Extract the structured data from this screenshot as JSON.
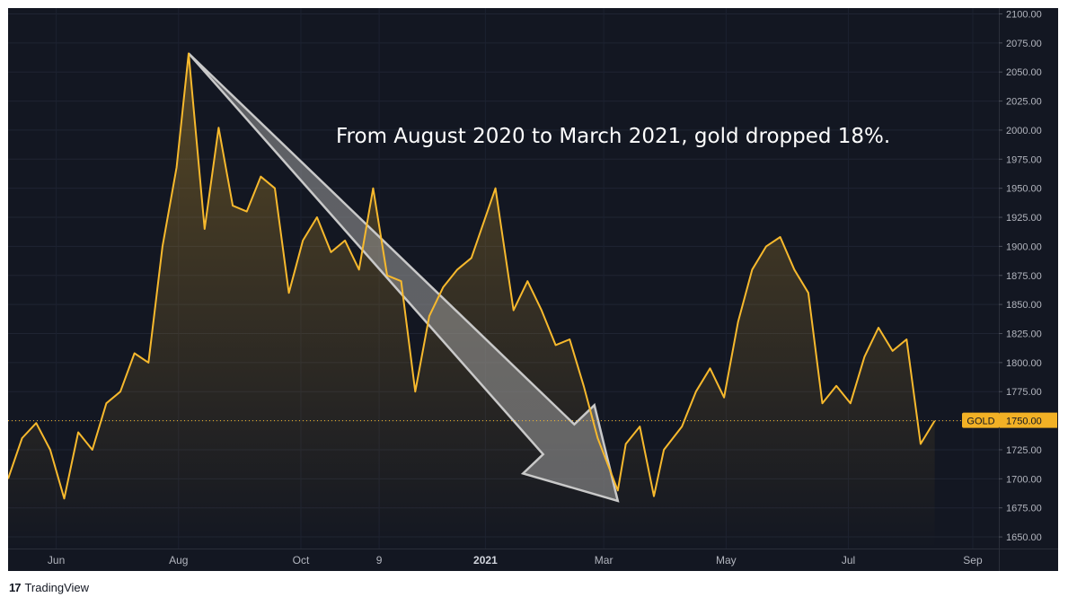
{
  "annotation": "From August 2020 to March 2021, gold dropped 18%.",
  "brand": {
    "logo": "17",
    "name": "TradingView"
  },
  "colors": {
    "background": "#131722",
    "line": "#f7b92d",
    "arrow": "#8e8e8e",
    "label_bg": "#f2b125"
  },
  "chart_data": {
    "type": "area",
    "series": [
      {
        "name": "GOLD",
        "last_value": 1750,
        "x": [
          "2020-05-08",
          "2020-05-15",
          "2020-05-22",
          "2020-05-29",
          "2020-06-05",
          "2020-06-12",
          "2020-06-19",
          "2020-06-26",
          "2020-07-03",
          "2020-07-10",
          "2020-07-17",
          "2020-07-24",
          "2020-07-31",
          "2020-08-06",
          "2020-08-14",
          "2020-08-21",
          "2020-08-28",
          "2020-09-04",
          "2020-09-11",
          "2020-09-18",
          "2020-09-25",
          "2020-10-02",
          "2020-10-09",
          "2020-10-16",
          "2020-10-23",
          "2020-10-30",
          "2020-11-06",
          "2020-11-13",
          "2020-11-20",
          "2020-11-27",
          "2020-12-04",
          "2020-12-11",
          "2020-12-18",
          "2020-12-25",
          "2021-01-06",
          "2021-01-15",
          "2021-01-22",
          "2021-01-29",
          "2021-02-05",
          "2021-02-12",
          "2021-02-19",
          "2021-02-26",
          "2021-03-08",
          "2021-03-12",
          "2021-03-19",
          "2021-03-26",
          "2021-03-31",
          "2021-04-09",
          "2021-04-16",
          "2021-04-23",
          "2021-04-30",
          "2021-05-07",
          "2021-05-14",
          "2021-05-21",
          "2021-05-28",
          "2021-06-04",
          "2021-06-11",
          "2021-06-18",
          "2021-06-25",
          "2021-07-02",
          "2021-07-09",
          "2021-07-16",
          "2021-07-23",
          "2021-07-30",
          "2021-08-06",
          "2021-08-13"
        ],
        "y": [
          1700,
          1735,
          1748,
          1725,
          1683,
          1740,
          1725,
          1765,
          1775,
          1808,
          1800,
          1900,
          1968,
          2066,
          1915,
          2002,
          1935,
          1930,
          1960,
          1950,
          1860,
          1905,
          1925,
          1895,
          1905,
          1880,
          1950,
          1875,
          1870,
          1775,
          1840,
          1865,
          1880,
          1890,
          1950,
          1845,
          1870,
          1845,
          1815,
          1820,
          1780,
          1735,
          1690,
          1730,
          1745,
          1685,
          1725,
          1745,
          1775,
          1795,
          1770,
          1835,
          1880,
          1900,
          1908,
          1880,
          1860,
          1765,
          1780,
          1765,
          1805,
          1830,
          1810,
          1820,
          1730,
          1750
        ]
      }
    ],
    "ylim": [
      1640,
      2105
    ],
    "y_ticks": [
      "2100.00",
      "2075.00",
      "2050.00",
      "2025.00",
      "2000.00",
      "1975.00",
      "1950.00",
      "1925.00",
      "1900.00",
      "1875.00",
      "1850.00",
      "1825.00",
      "1800.00",
      "1775.00",
      "1750.00",
      "1725.00",
      "1700.00",
      "1675.00",
      "1650.00"
    ],
    "x_ticks": [
      {
        "label": "Jun",
        "date": "2020-06-01"
      },
      {
        "label": "Aug",
        "date": "2020-08-01"
      },
      {
        "label": "Oct",
        "date": "2020-10-01"
      },
      {
        "label": "9",
        "date": "2020-11-09"
      },
      {
        "label": "2021",
        "date": "2021-01-01"
      },
      {
        "label": "Mar",
        "date": "2021-03-01"
      },
      {
        "label": "May",
        "date": "2021-05-01"
      },
      {
        "label": "Jul",
        "date": "2021-07-01"
      },
      {
        "label": "Sep",
        "date": "2021-09-01"
      }
    ],
    "xlim": [
      "2020-05-08",
      "2021-09-14"
    ],
    "price_line": 1750,
    "arrow": {
      "from": {
        "date": "2020-08-06",
        "value": 2066
      },
      "to": {
        "date": "2021-03-08",
        "value": 1681
      }
    },
    "grid": true,
    "legend": "right-axis price label"
  }
}
